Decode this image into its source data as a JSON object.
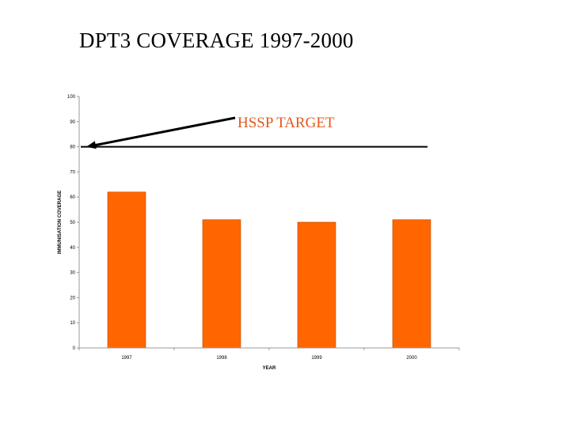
{
  "slide": {
    "title": "DPT3 COVERAGE 1997-2000"
  },
  "chart_data": {
    "type": "bar",
    "title": "DPT3 COVERAGE 1997-2000",
    "categories": [
      "1997",
      "1998",
      "1999",
      "2000"
    ],
    "values": [
      62,
      51,
      50,
      51
    ],
    "xlabel": "YEAR",
    "ylabel": "IMMUNISATION COVERAGE",
    "ylim": [
      0,
      100
    ],
    "yticks": [
      0,
      10,
      20,
      30,
      40,
      50,
      60,
      70,
      80,
      90,
      100
    ],
    "grid": false,
    "target": {
      "label": "HSSP TARGET",
      "value": 80
    },
    "colors": {
      "bar": "#FF6600",
      "bar_edge": "#B34700",
      "annotation": "#E35A1B",
      "line": "#000000"
    }
  }
}
